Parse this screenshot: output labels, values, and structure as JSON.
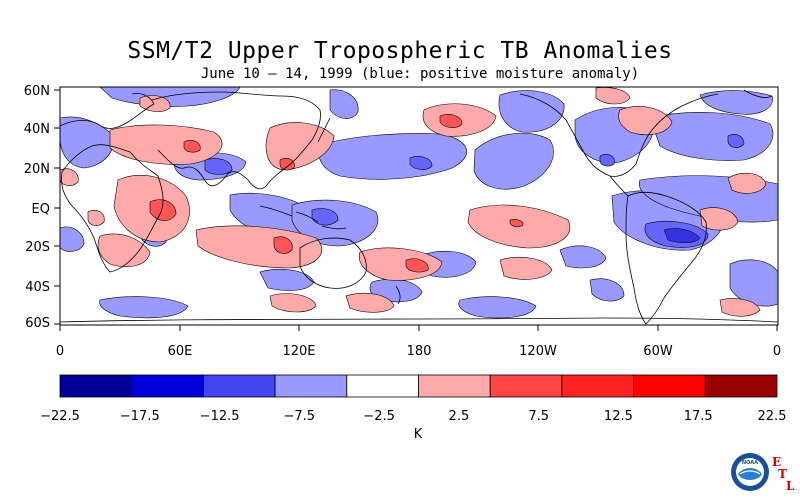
{
  "title": "SSM/T2 Upper Tropospheric TB Anomalies",
  "subtitle": "June 10 – 14, 1999 (blue: positive moisture anomaly)",
  "map": {
    "lat_ticks": [
      "60N",
      "40N",
      "20N",
      "EQ",
      "20S",
      "40S",
      "60S"
    ],
    "lon_ticks": [
      "0",
      "60E",
      "120E",
      "180",
      "120W",
      "60W",
      "0"
    ],
    "colors": {
      "coast": "#000000",
      "neg_light": "#9999ff",
      "neg_mid": "#6666ff",
      "neg_dark": "#3333dd",
      "pos_light": "#ffaaaa",
      "pos_mid": "#ff5555",
      "pos_dark": "#ee2222"
    }
  },
  "colorbar": {
    "labels": [
      "−22.5",
      "−17.5",
      "−12.5",
      "−7.5",
      "−2.5",
      "2.5",
      "7.5",
      "12.5",
      "17.5",
      "22.5"
    ],
    "colors": [
      "#000099",
      "#0000dd",
      "#4444ee",
      "#9999ff",
      "#ffffff",
      "#ffaaaa",
      "#ff4444",
      "#ff2222",
      "#ff0000",
      "#990000"
    ],
    "unit": "K"
  },
  "logo": {
    "noaa_text": "NOAA",
    "etl": [
      "E",
      "T",
      "L"
    ]
  }
}
